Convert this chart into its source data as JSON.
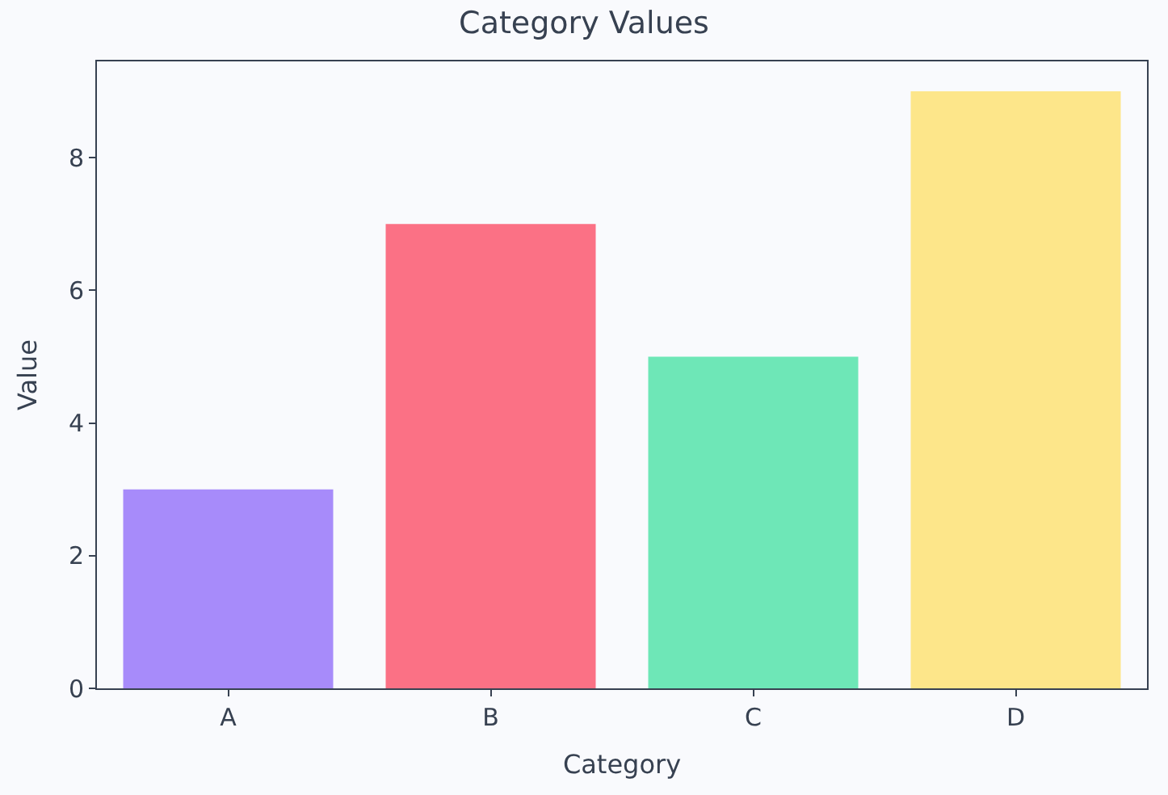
{
  "chart_data": {
    "type": "bar",
    "title": "Category Values",
    "xlabel": "Category",
    "ylabel": "Value",
    "categories": [
      "A",
      "B",
      "C",
      "D"
    ],
    "values": [
      3,
      7,
      5,
      9
    ],
    "colors": [
      "#a78bfa",
      "#fb7185",
      "#6ee7b7",
      "#fde68a"
    ],
    "ylim": [
      0,
      9.45
    ],
    "yticks": [
      0,
      2,
      4,
      6,
      8
    ],
    "grid": false
  }
}
